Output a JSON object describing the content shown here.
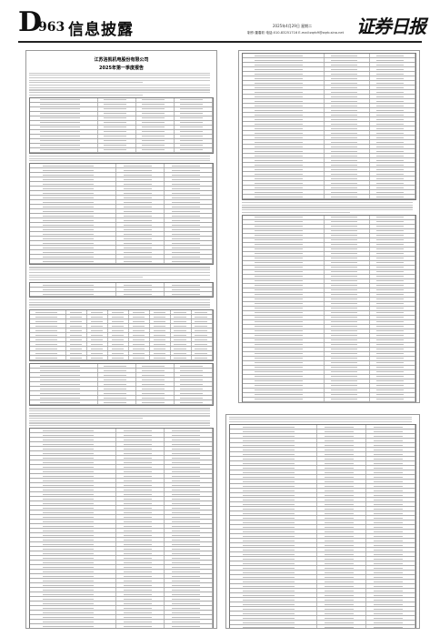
{
  "header": {
    "letter": "D",
    "page": "963",
    "section": "信息披露",
    "date": "2025年4月29日 星期二",
    "info": "制作:董春彩 电话:010-83251716 E-mail:zqrb9@zqrb.sina.net",
    "logo": "证券日报"
  },
  "article": {
    "company": "江苏洛凯机电股份有限公司",
    "report": "2025年第一季度报告"
  }
}
